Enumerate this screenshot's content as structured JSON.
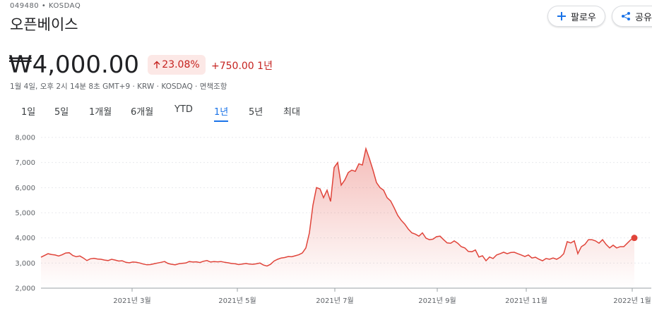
{
  "header": {
    "ticker": "049480 • KOSDAQ",
    "name": "오픈베이스",
    "follow": "팔로우",
    "share": "공유"
  },
  "quote": {
    "price": "₩4,000.00",
    "change_pct": "23.08%",
    "change": "+750.00",
    "period": "1년",
    "timestamp": "1월 4일, 오후 2시 14분 8초 GMT+9 · KRW · KOSDAQ · 면책조항"
  },
  "tabs": {
    "items": [
      "1일",
      "5일",
      "1개월",
      "6개월",
      "YTD",
      "1년",
      "5년",
      "최대"
    ],
    "selected": 5
  },
  "chart": {
    "type": "line",
    "color": "#e0443a",
    "grid": true,
    "ylim": [
      2000,
      8000
    ],
    "yticks": [
      {
        "value": 2000,
        "label": "2,000"
      },
      {
        "value": 3000,
        "label": "3,000"
      },
      {
        "value": 4000,
        "label": "4,000"
      },
      {
        "value": 5000,
        "label": "5,000"
      },
      {
        "value": 6000,
        "label": "6,000"
      },
      {
        "value": 7000,
        "label": "7,000"
      },
      {
        "value": 8000,
        "label": "8,000"
      }
    ],
    "xlim": [
      0,
      168
    ],
    "xticks": [
      {
        "value": 25.8,
        "label": "2021년 3월"
      },
      {
        "value": 55.6,
        "label": "2021년 5월"
      },
      {
        "value": 83.2,
        "label": "2021년 7월"
      },
      {
        "value": 112.2,
        "label": "2021년 9월"
      },
      {
        "value": 137.4,
        "label": "2021년 11월"
      },
      {
        "value": 167.4,
        "label": "2022년 1월"
      }
    ],
    "values": [
      3230,
      3300,
      3370,
      3340,
      3320,
      3280,
      3330,
      3400,
      3410,
      3300,
      3250,
      3280,
      3200,
      3100,
      3170,
      3190,
      3160,
      3150,
      3120,
      3100,
      3150,
      3120,
      3080,
      3090,
      3030,
      3010,
      3040,
      3030,
      3000,
      2960,
      2930,
      2940,
      2970,
      3000,
      3030,
      3060,
      2980,
      2950,
      2930,
      2970,
      2990,
      3000,
      3060,
      3040,
      3050,
      3020,
      3070,
      3100,
      3040,
      3060,
      3050,
      3060,
      3030,
      3010,
      2980,
      2970,
      2940,
      2960,
      2980,
      2960,
      2950,
      2970,
      3000,
      2920,
      2880,
      2950,
      3080,
      3150,
      3200,
      3220,
      3260,
      3250,
      3290,
      3330,
      3400,
      3600,
      4200,
      5300,
      6000,
      5950,
      5600,
      5900,
      5450,
      6800,
      7000,
      6100,
      6300,
      6600,
      6700,
      6650,
      6950,
      6900,
      7550,
      7150,
      6700,
      6200,
      6000,
      5900,
      5600,
      5470,
      5200,
      4900,
      4700,
      4550,
      4350,
      4200,
      4150,
      4070,
      4200,
      3990,
      3930,
      3950,
      4050,
      4070,
      3930,
      3800,
      3790,
      3880,
      3790,
      3650,
      3600,
      3460,
      3450,
      3520,
      3240,
      3290,
      3090,
      3240,
      3180,
      3320,
      3370,
      3430,
      3370,
      3420,
      3430,
      3370,
      3320,
      3260,
      3320,
      3200,
      3230,
      3150,
      3090,
      3180,
      3150,
      3200,
      3150,
      3230,
      3370,
      3850,
      3800,
      3880,
      3370,
      3650,
      3740,
      3930,
      3930,
      3880,
      3790,
      3930,
      3740,
      3600,
      3710,
      3600,
      3650,
      3650,
      3790,
      3930,
      4000
    ]
  }
}
